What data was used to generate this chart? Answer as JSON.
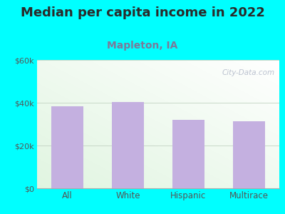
{
  "title": "Median per capita income in 2022",
  "subtitle": "Mapleton, IA",
  "categories": [
    "All",
    "White",
    "Hispanic",
    "Multirace"
  ],
  "values": [
    38500,
    40500,
    32000,
    31500
  ],
  "bar_color": "#c4b0e0",
  "ylim": [
    0,
    60000
  ],
  "ytick_labels": [
    "$0",
    "$20k",
    "$40k",
    "$60k"
  ],
  "ytick_values": [
    0,
    20000,
    40000,
    60000
  ],
  "background_outer": "#00ffff",
  "title_fontsize": 13,
  "subtitle_fontsize": 10,
  "subtitle_color": "#7a7a9a",
  "title_color": "#2a2a2a",
  "tick_color": "#555555",
  "watermark": "City-Data.com",
  "watermark_color": "#b0b8c8",
  "grid_color": "#c8d8c8",
  "bottom_spine_color": "#aaaaaa"
}
